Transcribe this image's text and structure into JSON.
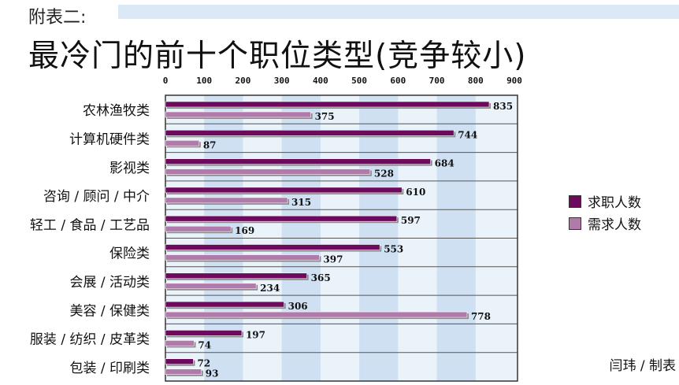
{
  "header": {
    "subtitle": "附表二:",
    "title": "最冷门的前十个职位类型(竞争较小)",
    "credit": "闫玮 / 制表"
  },
  "colors": {
    "series1": "#6d0a5e",
    "series2": "#b07aab",
    "plot_bg": "#cfe0f3",
    "plot_bg_light": "#eaf2fa"
  },
  "chart_data": {
    "type": "bar",
    "orientation": "horizontal",
    "categories": [
      "农林渔牧类",
      "计算机硬件类",
      "影视类",
      "咨询 / 顾问 / 中介",
      "轻工 / 食品 / 工艺品",
      "保险类",
      "会展 / 活动类",
      "美容 / 保健类",
      "服装 / 纺织 / 皮革类",
      "包装 / 印刷类"
    ],
    "series": [
      {
        "name": "求职人数",
        "values": [
          835,
          744,
          684,
          610,
          597,
          553,
          365,
          306,
          197,
          72
        ]
      },
      {
        "name": "需求人数",
        "values": [
          375,
          87,
          528,
          315,
          169,
          397,
          234,
          778,
          74,
          93
        ]
      }
    ],
    "xticks": [
      "0",
      "100",
      "200",
      "300",
      "400",
      "500",
      "600",
      "700",
      "800",
      "900"
    ],
    "xlim": [
      0,
      900
    ],
    "grid": true,
    "legend_position": "right"
  }
}
